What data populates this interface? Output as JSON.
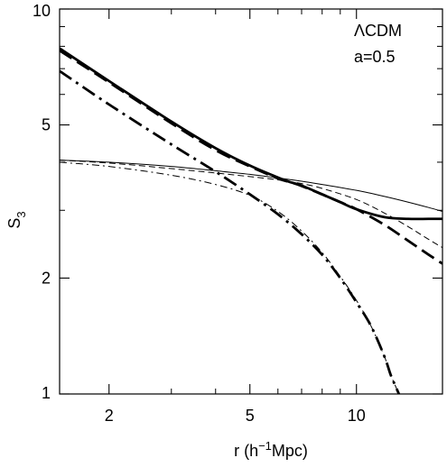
{
  "chart_data": {
    "type": "line",
    "title": "",
    "xlabel": "r (h",
    "xlabel_sup": "−1",
    "xlabel_tail": "Mpc)",
    "ylabel": "S",
    "ylabel_sub": "3",
    "x_scale": "log",
    "y_scale": "log",
    "xlim": [
      1.45,
      17.5
    ],
    "ylim": [
      1,
      10
    ],
    "x_ticks": [
      2,
      5,
      10
    ],
    "x_tick_labels": [
      "2",
      "5",
      "10"
    ],
    "y_ticks": [
      1,
      2,
      5,
      10
    ],
    "y_tick_labels": [
      "1",
      "2",
      "5",
      "10"
    ],
    "grid": false,
    "legend": "none",
    "annotations": [
      "ΛCDM",
      "a=0.5"
    ],
    "series": [
      {
        "style": "thick-solid",
        "x": [
          1.45,
          2,
          3,
          4,
          5,
          6,
          6.5,
          7,
          8,
          9,
          10,
          12,
          14,
          16,
          17.5
        ],
        "y": [
          7.9,
          6.5,
          5.1,
          4.35,
          3.92,
          3.65,
          3.55,
          3.48,
          3.3,
          3.15,
          3.02,
          2.88,
          2.85,
          2.85,
          2.85
        ]
      },
      {
        "style": "thick-dashed",
        "x": [
          1.45,
          2,
          3,
          4,
          5,
          6,
          6.5,
          7,
          8,
          9,
          10,
          12,
          14,
          16,
          17.5
        ],
        "y": [
          7.8,
          6.45,
          5.05,
          4.3,
          3.9,
          3.63,
          3.55,
          3.47,
          3.3,
          3.15,
          3.02,
          2.75,
          2.5,
          2.3,
          2.18
        ]
      },
      {
        "style": "thick-dashdot",
        "x": [
          1.45,
          2,
          3,
          4,
          5,
          6,
          7,
          8,
          9,
          10,
          11,
          12,
          12.5,
          13,
          13.5
        ],
        "y": [
          6.9,
          5.65,
          4.45,
          3.78,
          3.3,
          2.93,
          2.6,
          2.3,
          2.0,
          1.73,
          1.5,
          1.25,
          1.12,
          1.03,
          0.95
        ]
      },
      {
        "style": "thin-solid",
        "x": [
          1.45,
          2,
          3,
          4,
          5,
          6,
          7,
          8,
          10,
          12,
          14,
          16,
          17.5
        ],
        "y": [
          4.05,
          4.0,
          3.9,
          3.8,
          3.72,
          3.64,
          3.57,
          3.5,
          3.38,
          3.26,
          3.15,
          3.05,
          2.98
        ]
      },
      {
        "style": "thin-dashed",
        "x": [
          1.45,
          2,
          3,
          4,
          5,
          6,
          7,
          8,
          10,
          12,
          14,
          16,
          17.5
        ],
        "y": [
          4.05,
          3.98,
          3.85,
          3.75,
          3.67,
          3.6,
          3.52,
          3.42,
          3.2,
          2.95,
          2.72,
          2.52,
          2.4
        ]
      },
      {
        "style": "thin-dashdot",
        "x": [
          1.45,
          2,
          3,
          4,
          5,
          6,
          7,
          8,
          9,
          10,
          11,
          12,
          12.5,
          13,
          13.5
        ],
        "y": [
          4.0,
          3.9,
          3.7,
          3.5,
          3.28,
          2.98,
          2.65,
          2.33,
          2.02,
          1.75,
          1.5,
          1.25,
          1.12,
          1.03,
          0.95
        ]
      }
    ]
  }
}
